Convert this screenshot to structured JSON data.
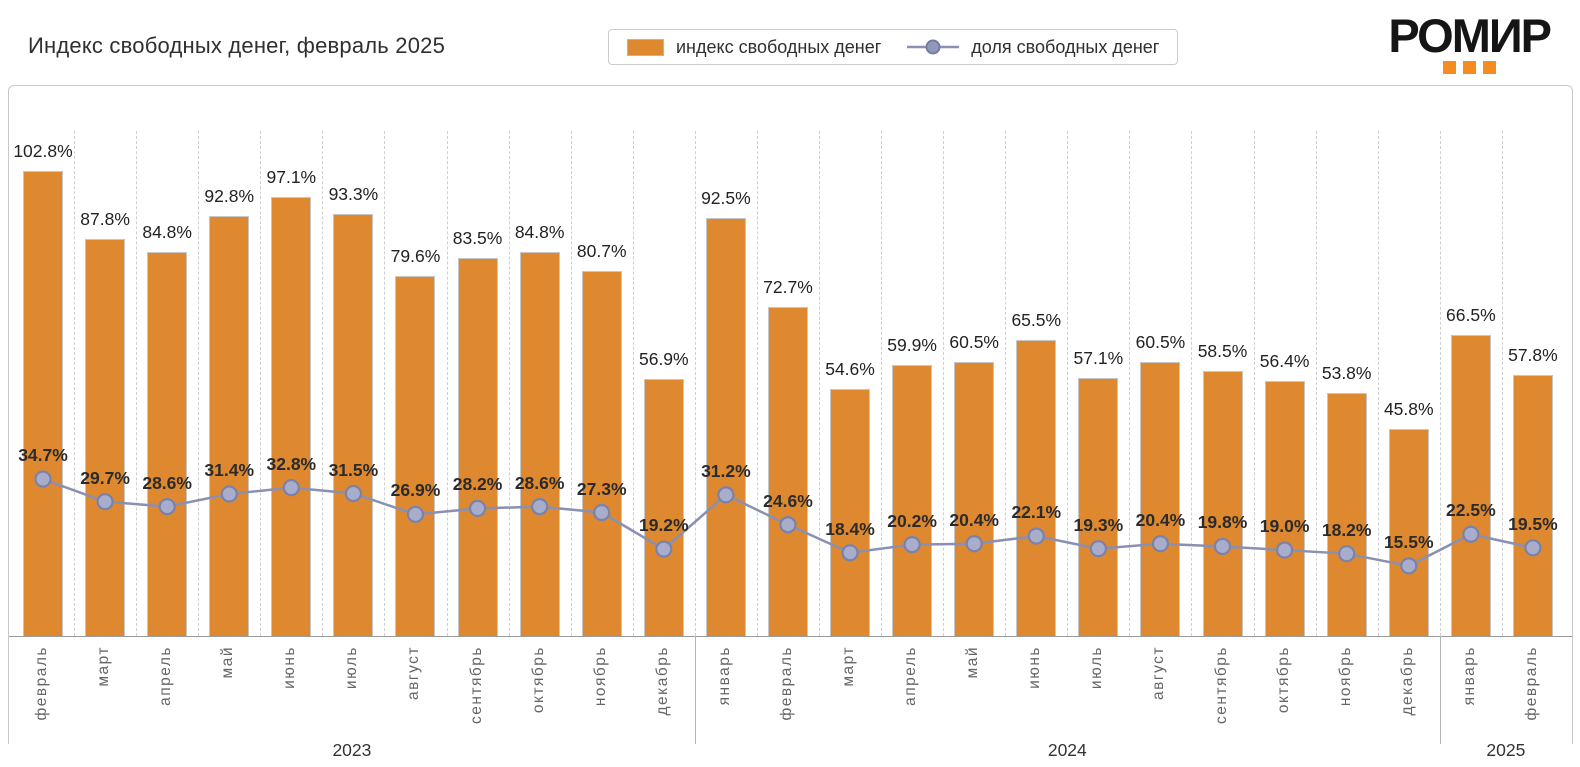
{
  "header": {
    "title": "Индекс свободных денег, февраль 2025",
    "logo_text": "РОМИР"
  },
  "legend": {
    "bar_label": "индекс свободных денег",
    "line_label": "доля свободных денег"
  },
  "colors": {
    "bar_fill": "#DE882F",
    "bar_border": "#C6C6C6",
    "line": "#8A90B2",
    "marker_fill": "#A8ADCB",
    "marker_border": "#7B82AA",
    "legend_marker_fill": "#9298B8",
    "legend_marker_border": "#757CA4",
    "logo_orange": "#F68B1F"
  },
  "chart_data": {
    "type": "bar",
    "title": "Индекс свободных денег, февраль 2025",
    "categories": [
      "февраль",
      "март",
      "апрель",
      "май",
      "июнь",
      "июль",
      "август",
      "сентябрь",
      "октябрь",
      "ноябрь",
      "декабрь",
      "январь",
      "февраль",
      "март",
      "апрель",
      "май",
      "июнь",
      "июль",
      "август",
      "сентябрь",
      "октябрь",
      "ноябрь",
      "декабрь",
      "январь",
      "февраль"
    ],
    "year_groups": [
      {
        "label": "2023",
        "count": 11
      },
      {
        "label": "2024",
        "count": 12
      },
      {
        "label": "2025",
        "count": 2
      }
    ],
    "series": [
      {
        "name": "индекс свободных денег",
        "type": "bar",
        "unit": "%",
        "values": [
          102.8,
          87.8,
          84.8,
          92.8,
          97.1,
          93.3,
          79.6,
          83.5,
          84.8,
          80.7,
          56.9,
          92.5,
          72.7,
          54.6,
          59.9,
          60.5,
          65.5,
          57.1,
          60.5,
          58.5,
          56.4,
          53.8,
          45.8,
          66.5,
          57.8
        ]
      },
      {
        "name": "доля свободных денег",
        "type": "line",
        "unit": "%",
        "values": [
          34.7,
          29.7,
          28.6,
          31.4,
          32.8,
          31.5,
          26.9,
          28.2,
          28.6,
          27.3,
          19.2,
          31.2,
          24.6,
          18.4,
          20.2,
          20.4,
          22.1,
          19.3,
          20.4,
          19.8,
          19.0,
          18.2,
          15.5,
          22.5,
          19.5
        ]
      }
    ],
    "ylim": [
      0,
      120
    ],
    "grid": "vertical-dashed",
    "legend_position": "top-center",
    "value_labels": "all"
  }
}
